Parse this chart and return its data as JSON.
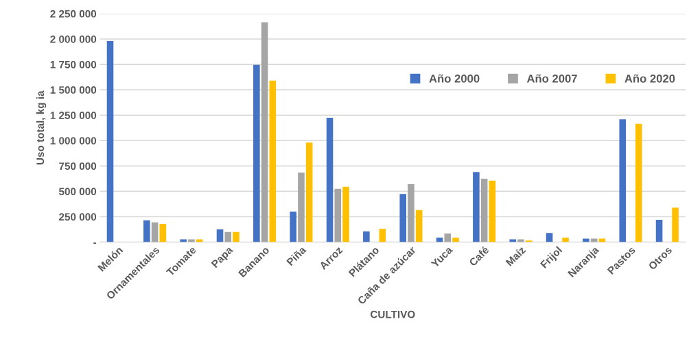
{
  "chart_data": {
    "type": "bar",
    "xlabel": "CULTIVO",
    "ylabel": "Uso total, kg ia",
    "categories": [
      "Melón",
      "Ornamentales",
      "Tomate",
      "Papa",
      "Banano",
      "Piña",
      "Arroz",
      "Plátano",
      "Caña de azúcar",
      "Yuca",
      "Café",
      "Maíz",
      "Frijol",
      "Naranja",
      "Pastos",
      "Otros"
    ],
    "series": [
      {
        "name": "Año 2000",
        "color": "#4472c4",
        "values": [
          1980000,
          215000,
          27000,
          125000,
          1745000,
          300000,
          1225000,
          105000,
          475000,
          45000,
          690000,
          27000,
          90000,
          35000,
          1210000,
          220000
        ]
      },
      {
        "name": "Año 2007",
        "color": "#a5a5a5",
        "values": [
          0,
          195000,
          27000,
          100000,
          2165000,
          685000,
          525000,
          0,
          570000,
          85000,
          625000,
          27000,
          0,
          35000,
          0,
          0
        ]
      },
      {
        "name": "Año 2020",
        "color": "#ffc000",
        "values": [
          0,
          180000,
          27000,
          100000,
          1590000,
          980000,
          545000,
          130000,
          315000,
          45000,
          605000,
          15000,
          45000,
          35000,
          1165000,
          340000
        ]
      }
    ],
    "ylim": [
      0,
      2250000
    ],
    "yticks": [
      {
        "value": 0,
        "label": "-"
      },
      {
        "value": 250000,
        "label": "250 000"
      },
      {
        "value": 500000,
        "label": "500 000"
      },
      {
        "value": 750000,
        "label": "750 000"
      },
      {
        "value": 1000000,
        "label": "1 000 000"
      },
      {
        "value": 1250000,
        "label": "1 250 000"
      },
      {
        "value": 1500000,
        "label": "1 500 000"
      },
      {
        "value": 1750000,
        "label": "1 750 000"
      },
      {
        "value": 2000000,
        "label": "2 000 000"
      },
      {
        "value": 2250000,
        "label": "2 250 000"
      }
    ],
    "grid": "y",
    "legend": "top right"
  }
}
